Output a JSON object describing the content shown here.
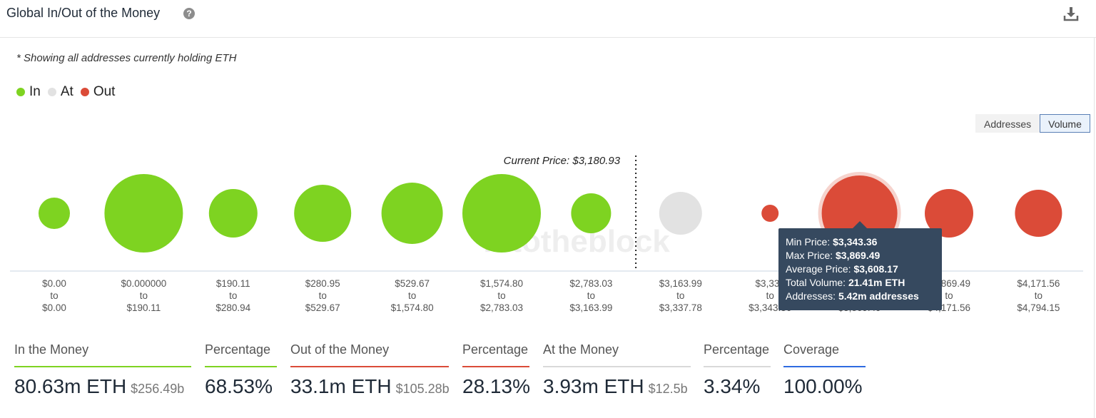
{
  "header": {
    "title": "Global In/Out of the Money",
    "help_icon": "?"
  },
  "note": "* Showing all addresses currently holding ETH",
  "legend": [
    {
      "label": "In",
      "color": "#7ed321"
    },
    {
      "label": "At",
      "color": "#e2e2e2"
    },
    {
      "label": "Out",
      "color": "#db4b38"
    }
  ],
  "toggle": {
    "addresses": "Addresses",
    "volume": "Volume",
    "selected": "Volume"
  },
  "chart_data": {
    "type": "bubble",
    "current_price_label": "Current Price: $3,180.93",
    "watermark": "intotheblock",
    "buckets": [
      {
        "from": "$0.00",
        "to": "$0.00",
        "status": "in",
        "size": 22
      },
      {
        "from": "$0.000000",
        "to": "$190.11",
        "status": "in",
        "size": 55
      },
      {
        "from": "$190.11",
        "to": "$280.94",
        "status": "in",
        "size": 34
      },
      {
        "from": "$280.95",
        "to": "$529.67",
        "status": "in",
        "size": 40
      },
      {
        "from": "$529.67",
        "to": "$1,574.80",
        "status": "in",
        "size": 43
      },
      {
        "from": "$1,574.80",
        "to": "$2,783.03",
        "status": "in",
        "size": 55
      },
      {
        "from": "$2,783.03",
        "to": "$3,163.99",
        "status": "in",
        "size": 28
      },
      {
        "from": "$3,163.99",
        "to": "$3,337.78",
        "status": "at",
        "size": 30
      },
      {
        "from": "$3,337",
        "to": "$3,343.36",
        "status": "out",
        "size": 12
      },
      {
        "from": "$3,343.36",
        "to": "$3,869.49",
        "status": "out",
        "size": 53
      },
      {
        "from": "$3,869.49",
        "to": "$4,171.56",
        "status": "out",
        "size": 34
      },
      {
        "from": "$4,171.56",
        "to": "$4,794.15",
        "status": "out",
        "size": 33
      }
    ],
    "tooltip": {
      "min_label": "Min Price:",
      "min_value": "$3,343.36",
      "max_label": "Max Price:",
      "max_value": "$3,869.49",
      "avg_label": "Average Price:",
      "avg_value": "$3,608.17",
      "vol_label": "Total Volume:",
      "vol_value": "21.41m ETH",
      "addr_label": "Addresses:",
      "addr_value": "5.42m addresses"
    }
  },
  "stats": [
    {
      "label": "In the Money",
      "value": "80.63m ETH",
      "sub": "$256.49b",
      "color": "#7ed321"
    },
    {
      "label": "Percentage",
      "value": "68.53%",
      "sub": "",
      "color": "#7ed321"
    },
    {
      "label": "Out of the Money",
      "value": "33.1m ETH",
      "sub": "$105.28b",
      "color": "#db4b38"
    },
    {
      "label": "Percentage",
      "value": "28.13%",
      "sub": "",
      "color": "#db4b38"
    },
    {
      "label": "At the Money",
      "value": "3.93m ETH",
      "sub": "$12.5b",
      "color": "#d9d9d9"
    },
    {
      "label": "Percentage",
      "value": "3.34%",
      "sub": "",
      "color": "#d9d9d9"
    },
    {
      "label": "Coverage",
      "value": "100.00%",
      "sub": "",
      "color": "#2f6be0"
    }
  ]
}
